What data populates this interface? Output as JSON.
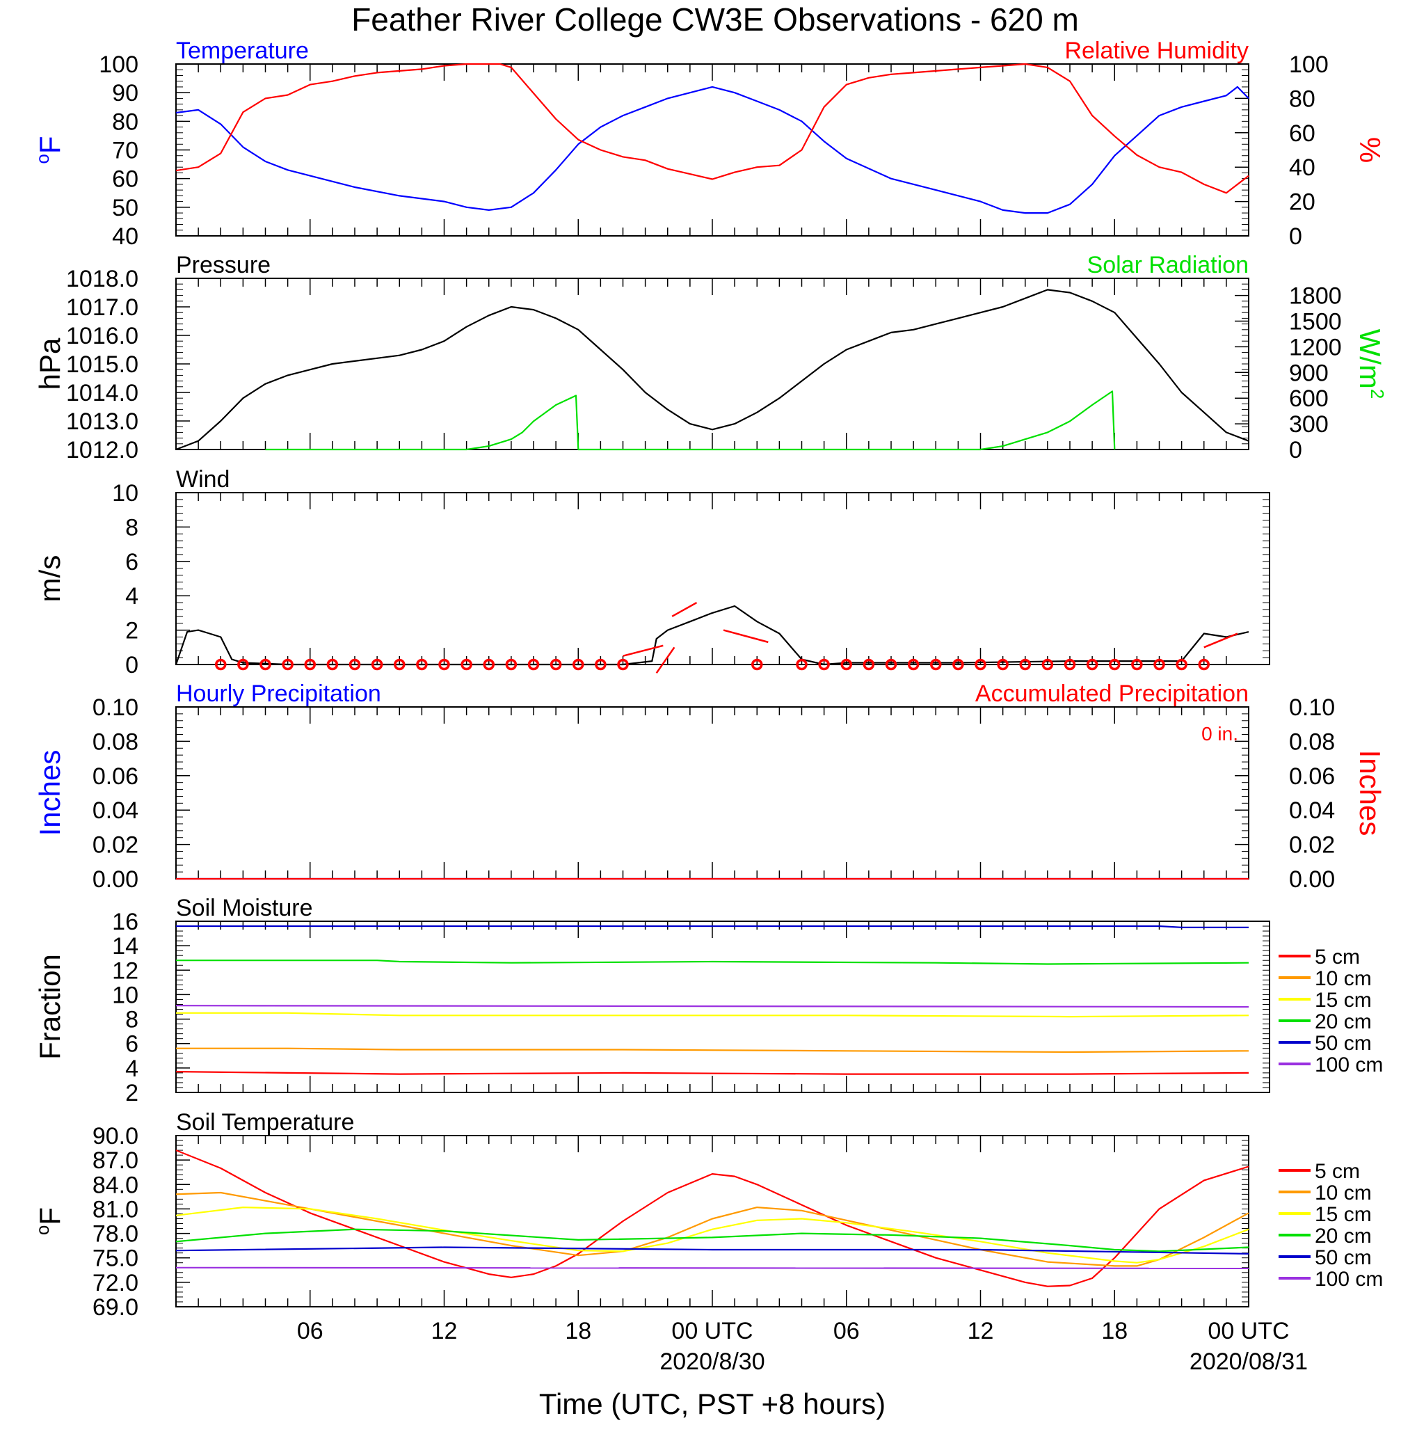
{
  "title": "Feather River College CW3E Observations - 620 m",
  "xlabel": "Time (UTC, PST +8 hours)",
  "time_axis": {
    "range_hours": [
      0,
      48
    ],
    "ticks": [
      {
        "h": 6,
        "label": "06"
      },
      {
        "h": 12,
        "label": "12"
      },
      {
        "h": 18,
        "label": "18"
      },
      {
        "h": 24,
        "label": "00 UTC",
        "sublabel": "2020/8/30"
      },
      {
        "h": 30,
        "label": "06"
      },
      {
        "h": 36,
        "label": "12"
      },
      {
        "h": 42,
        "label": "18"
      },
      {
        "h": 48,
        "label": "00 UTC",
        "sublabel": "2020/08/31"
      }
    ]
  },
  "colors": {
    "red": "#ff0000",
    "blue": "#0000ff",
    "green": "#00e000",
    "orange": "#ff9a00",
    "yellow": "#ffff00",
    "darkblue": "#0000cc",
    "purple": "#9a30e0"
  },
  "chart_data": [
    {
      "id": "temp_rh",
      "type": "line",
      "title_left": "Temperature",
      "title_right": "Relative Humidity",
      "ylabel_left_sup": "o",
      "ylabel_left": "F",
      "ylabel_right": "%",
      "ylim_left": [
        40,
        100
      ],
      "yticks_left": [
        "40",
        "50",
        "60",
        "70",
        "80",
        "90",
        "100"
      ],
      "ylim_right": [
        0,
        100
      ],
      "yticks_right": [
        "0",
        "20",
        "40",
        "60",
        "80",
        "100"
      ],
      "series": [
        {
          "axis": "left",
          "color": "#0000ff",
          "x": [
            0,
            1,
            2,
            3,
            4,
            5,
            6,
            8,
            10,
            12,
            13,
            14,
            15,
            16,
            17,
            18,
            19,
            20,
            21,
            22,
            23,
            24,
            25,
            26,
            27,
            28,
            29,
            30,
            32,
            34,
            36,
            37,
            38,
            39,
            40,
            41,
            42,
            43,
            44,
            45,
            46,
            47,
            47.5,
            48
          ],
          "y": [
            83,
            84,
            79,
            71,
            66,
            63,
            61,
            57,
            54,
            52,
            50,
            49,
            50,
            55,
            63,
            72,
            78,
            82,
            85,
            88,
            90,
            92,
            90,
            87,
            84,
            80,
            73,
            67,
            60,
            56,
            52,
            49,
            48,
            48,
            51,
            58,
            68,
            75,
            82,
            85,
            87,
            89,
            92,
            88
          ]
        },
        {
          "axis": "right",
          "color": "#ff0000",
          "x": [
            0,
            1,
            2,
            3,
            4,
            5,
            6,
            7,
            8,
            9,
            10,
            11,
            12,
            13,
            14,
            14.5,
            15,
            16,
            17,
            18,
            19,
            20,
            21,
            22,
            23,
            24,
            25,
            26,
            27,
            28,
            29,
            30,
            31,
            32,
            33,
            34,
            35,
            36,
            37,
            38,
            39,
            40,
            41,
            42,
            43,
            44,
            45,
            46,
            47,
            48
          ],
          "y": [
            38,
            40,
            48,
            72,
            80,
            82,
            88,
            90,
            93,
            95,
            96,
            97,
            99,
            100,
            100,
            100,
            98,
            83,
            68,
            56,
            50,
            46,
            44,
            39,
            36,
            33,
            37,
            40,
            41,
            50,
            75,
            88,
            92,
            94,
            95,
            96,
            97,
            98,
            99,
            100,
            98,
            90,
            70,
            58,
            47,
            40,
            37,
            30,
            25,
            35
          ]
        }
      ]
    },
    {
      "id": "pressure_solar",
      "type": "line",
      "title_left": "Pressure",
      "title_right": "Solar Radiation",
      "ylabel_left": "hPa",
      "ylabel_right": "W/m",
      "ylabel_right_sup": "2",
      "ylim_left": [
        1012,
        1018
      ],
      "yticks_left": [
        "1012.0",
        "1013.0",
        "1014.0",
        "1015.0",
        "1016.0",
        "1017.0",
        "1018.0"
      ],
      "ylim_right": [
        0,
        2000
      ],
      "yticks_right": [
        "0",
        "300",
        "600",
        "900",
        "1200",
        "1500",
        "1800"
      ],
      "series": [
        {
          "axis": "left",
          "color": "#000000",
          "x": [
            0,
            1,
            2,
            3,
            4,
            5,
            6,
            7,
            8,
            9,
            10,
            11,
            12,
            13,
            14,
            15,
            16,
            17,
            18,
            19,
            20,
            21,
            22,
            23,
            24,
            25,
            26,
            27,
            28,
            29,
            30,
            31,
            32,
            33,
            34,
            35,
            36,
            37,
            38,
            39,
            40,
            41,
            42,
            43,
            44,
            45,
            46,
            47,
            48
          ],
          "y": [
            1012.0,
            1012.3,
            1013.0,
            1013.8,
            1014.3,
            1014.6,
            1014.8,
            1015.0,
            1015.1,
            1015.2,
            1015.3,
            1015.5,
            1015.8,
            1016.3,
            1016.7,
            1017.0,
            1016.9,
            1016.6,
            1016.2,
            1015.5,
            1014.8,
            1014.0,
            1013.4,
            1012.9,
            1012.7,
            1012.9,
            1013.3,
            1013.8,
            1014.4,
            1015.0,
            1015.5,
            1015.8,
            1016.1,
            1016.2,
            1016.4,
            1016.6,
            1016.8,
            1017.0,
            1017.3,
            1017.6,
            1017.5,
            1017.2,
            1016.8,
            1015.9,
            1015.0,
            1014.0,
            1013.3,
            1012.6,
            1012.3
          ]
        },
        {
          "axis": "right",
          "color": "#00e000",
          "x": [
            4,
            13,
            14,
            15,
            15.5,
            16,
            17,
            17.9,
            18,
            27,
            36,
            37,
            38,
            39,
            40,
            41,
            41.9,
            42
          ],
          "y": [
            0,
            0,
            40,
            120,
            200,
            330,
            520,
            630,
            0,
            0,
            0,
            40,
            120,
            200,
            330,
            520,
            680,
            0
          ]
        }
      ]
    },
    {
      "id": "wind",
      "type": "line",
      "title_left": "Wind",
      "ylabel_left": "m/s",
      "ylim_left": [
        0,
        10
      ],
      "yticks_left": [
        "0",
        "2",
        "4",
        "6",
        "8",
        "10"
      ],
      "series": [
        {
          "axis": "left",
          "color": "#000000",
          "x": [
            0,
            0.5,
            1,
            1.5,
            2,
            2.5,
            3,
            5,
            10,
            15,
            20,
            21.3,
            21.5,
            22,
            23,
            24,
            25,
            26,
            27,
            28,
            29,
            30,
            35,
            40,
            45,
            46,
            47,
            48
          ],
          "y": [
            0,
            1.9,
            2.0,
            1.8,
            1.6,
            0.3,
            0.1,
            0,
            0,
            0,
            0,
            0.2,
            1.5,
            2.0,
            2.5,
            3.0,
            3.4,
            2.5,
            1.8,
            0.3,
            0,
            0.1,
            0.1,
            0.2,
            0.2,
            1.8,
            1.6,
            1.9
          ]
        }
      ],
      "calm_markers_h": [
        2,
        3,
        4,
        5,
        6,
        7,
        8,
        9,
        10,
        11,
        12,
        13,
        14,
        15,
        16,
        17,
        18,
        19,
        20,
        26,
        28,
        29,
        30,
        31,
        32,
        33,
        34,
        35,
        36,
        37,
        38,
        39,
        40,
        41,
        42,
        43,
        44,
        45,
        46
      ]
    },
    {
      "id": "precip",
      "type": "line",
      "title_left": "Hourly Precipitation",
      "title_right": "Accumulated Precipitation",
      "annotation": "0 in.",
      "ylabel_left": "Inches",
      "ylabel_right": "Inches",
      "ylim_left": [
        0,
        0.1
      ],
      "yticks_left": [
        "0.00",
        "0.02",
        "0.04",
        "0.06",
        "0.08",
        "0.10"
      ],
      "ylim_right": [
        0,
        0.1
      ],
      "yticks_right": [
        "0.00",
        "0.02",
        "0.04",
        "0.06",
        "0.08",
        "0.10"
      ],
      "series": [
        {
          "axis": "left",
          "color": "#0000ff",
          "x": [
            0,
            48
          ],
          "y": [
            0,
            0
          ]
        },
        {
          "axis": "right",
          "color": "#ff0000",
          "x": [
            0,
            48
          ],
          "y": [
            0,
            0
          ]
        }
      ]
    },
    {
      "id": "soil_moisture",
      "type": "line",
      "title_left": "Soil Moisture",
      "ylabel_left": "Fraction",
      "ylim_left": [
        2,
        16
      ],
      "yticks_left": [
        "2",
        "4",
        "6",
        "8",
        "10",
        "12",
        "14",
        "16"
      ],
      "legend": [
        "5 cm",
        "10 cm",
        "15 cm",
        "20 cm",
        "50 cm",
        "100 cm"
      ],
      "series": [
        {
          "name": "5 cm",
          "color": "#ff0000",
          "x": [
            0,
            5,
            10,
            20,
            30,
            40,
            48
          ],
          "y": [
            3.7,
            3.6,
            3.5,
            3.6,
            3.5,
            3.5,
            3.6
          ]
        },
        {
          "name": "10 cm",
          "color": "#ff9a00",
          "x": [
            0,
            5,
            10,
            20,
            30,
            40,
            48
          ],
          "y": [
            5.6,
            5.6,
            5.5,
            5.5,
            5.4,
            5.3,
            5.4
          ]
        },
        {
          "name": "15 cm",
          "color": "#ffff00",
          "x": [
            0,
            5,
            10,
            20,
            30,
            40,
            48
          ],
          "y": [
            8.5,
            8.5,
            8.3,
            8.3,
            8.3,
            8.2,
            8.3
          ]
        },
        {
          "name": "20 cm",
          "color": "#00e000",
          "x": [
            0,
            9,
            10,
            15,
            24,
            34,
            39,
            48
          ],
          "y": [
            12.8,
            12.8,
            12.7,
            12.6,
            12.7,
            12.6,
            12.5,
            12.6
          ]
        },
        {
          "name": "50 cm",
          "color": "#0000cc",
          "x": [
            0,
            44,
            45,
            48
          ],
          "y": [
            15.6,
            15.6,
            15.5,
            15.5
          ]
        },
        {
          "name": "100 cm",
          "color": "#9a30e0",
          "x": [
            0,
            48
          ],
          "y": [
            9.1,
            9.0
          ]
        }
      ]
    },
    {
      "id": "soil_temperature",
      "type": "line",
      "title_left": "Soil Temperature",
      "ylabel_left_sup": "o",
      "ylabel_left": "F",
      "ylim_left": [
        69,
        90
      ],
      "yticks_left": [
        "69.0",
        "72.0",
        "75.0",
        "78.0",
        "81.0",
        "84.0",
        "87.0",
        "90.0"
      ],
      "legend": [
        "5 cm",
        "10 cm",
        "15 cm",
        "20 cm",
        "50 cm",
        "100 cm"
      ],
      "series": [
        {
          "name": "5 cm",
          "color": "#ff0000",
          "x": [
            0,
            2,
            4,
            6,
            8,
            10,
            12,
            14,
            15,
            16,
            17,
            18,
            20,
            22,
            24,
            25,
            26,
            28,
            30,
            32,
            34,
            36,
            38,
            39,
            40,
            41,
            42,
            44,
            46,
            48
          ],
          "y": [
            88.2,
            86,
            83,
            80.5,
            78.5,
            76.5,
            74.5,
            73,
            72.6,
            73,
            74,
            75.5,
            79.5,
            83,
            85.3,
            85,
            84,
            81.5,
            79,
            77,
            75,
            73.5,
            72,
            71.5,
            71.6,
            72.5,
            75,
            81,
            84.5,
            86.2
          ]
        },
        {
          "name": "10 cm",
          "color": "#ff9a00",
          "x": [
            0,
            2,
            4,
            6,
            9,
            12,
            15,
            18,
            20,
            22,
            24,
            26,
            28,
            30,
            33,
            36,
            39,
            42,
            43,
            44,
            46,
            48
          ],
          "y": [
            82.8,
            83,
            82,
            81,
            79.5,
            78,
            76.5,
            75.3,
            75.8,
            77.5,
            79.8,
            81.2,
            80.8,
            79.6,
            77.8,
            76,
            74.5,
            74,
            74,
            74.8,
            77.5,
            80.5
          ]
        },
        {
          "name": "15 cm",
          "color": "#ffff00",
          "x": [
            0,
            3,
            6,
            9,
            12,
            15,
            18,
            20,
            22,
            24,
            26,
            28,
            30,
            33,
            36,
            39,
            42,
            43,
            44,
            46,
            48
          ],
          "y": [
            80.2,
            81.2,
            81,
            79.8,
            78.4,
            77.1,
            75.9,
            75.8,
            76.8,
            78.5,
            79.6,
            79.8,
            79.3,
            78.2,
            77,
            75.6,
            74.6,
            74.4,
            74.8,
            76.4,
            78.5
          ]
        },
        {
          "name": "20 cm",
          "color": "#00e000",
          "x": [
            0,
            4,
            8,
            12,
            18,
            24,
            28,
            32,
            36,
            40,
            42,
            44,
            48
          ],
          "y": [
            77,
            78,
            78.5,
            78.3,
            77.2,
            77.5,
            78,
            77.8,
            77.4,
            76.5,
            76,
            75.8,
            76.3
          ]
        },
        {
          "name": "50 cm",
          "color": "#0000cc",
          "x": [
            0,
            12,
            24,
            36,
            48
          ],
          "y": [
            75.9,
            76.3,
            76.0,
            76.0,
            75.5
          ]
        },
        {
          "name": "100 cm",
          "color": "#9a30e0",
          "x": [
            0,
            48
          ],
          "y": [
            73.8,
            73.7
          ]
        }
      ]
    }
  ]
}
